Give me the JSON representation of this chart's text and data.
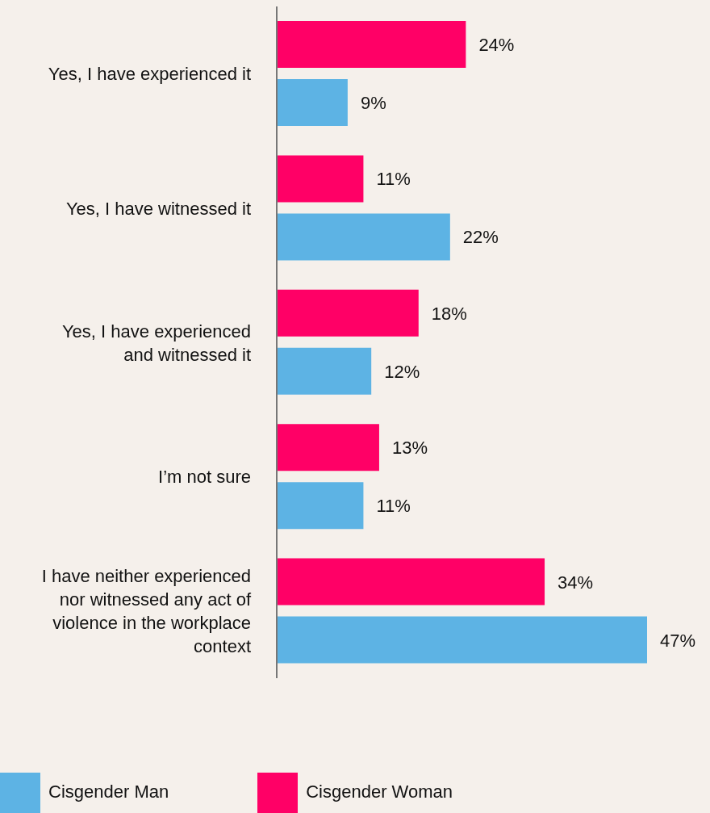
{
  "chart_data": {
    "type": "bar",
    "orientation": "horizontal",
    "categories": [
      "Yes, I have experienced it",
      "Yes, I have witnessed it",
      "Yes, I have experienced and witnessed it",
      "I’m not sure",
      "I have neither experienced nor witnessed any act of violence in the workplace context"
    ],
    "series": [
      {
        "name": "Cisgender Woman",
        "color": "#ff0066",
        "values": [
          24,
          11,
          18,
          13,
          34
        ],
        "value_labels": [
          "24%",
          "11%",
          "18%",
          "13%",
          "34%"
        ]
      },
      {
        "name": "Cisgender Man",
        "color": "#5db3e4",
        "values": [
          9,
          22,
          12,
          11,
          47
        ],
        "value_labels": [
          "9%",
          "22%",
          "12%",
          "11%",
          "47%"
        ]
      }
    ],
    "legend": "bottom",
    "grid": false
  }
}
